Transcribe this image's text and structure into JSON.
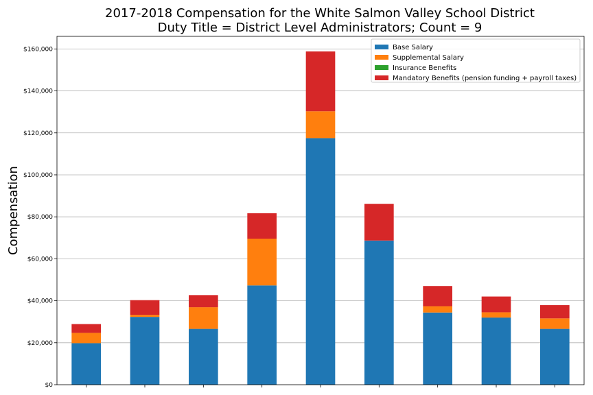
{
  "chart_data": {
    "type": "bar",
    "stacked": true,
    "title": "2017-2018 Compensation for the White Salmon Valley School District",
    "subtitle": "Duty Title = District Level Administrators; Count = 9",
    "xlabel": "",
    "ylabel": "Compensation",
    "ylim": [
      0,
      166000
    ],
    "yticks": [
      0,
      20000,
      40000,
      60000,
      80000,
      100000,
      120000,
      140000,
      160000
    ],
    "ytick_labels": [
      "$0",
      "$20,000",
      "$40,000",
      "$60,000",
      "$80,000",
      "$100,000",
      "$120,000",
      "$140,000",
      "$160,000"
    ],
    "grid": "horizontal",
    "legend_position": "top-right",
    "categories": [
      "",
      "",
      "",
      "",
      "",
      "",
      "",
      "",
      ""
    ],
    "series": [
      {
        "name": "Base Salary",
        "color": "#1f77b4",
        "values": [
          19800,
          32300,
          26600,
          47300,
          117500,
          68700,
          34400,
          32000,
          26600
        ]
      },
      {
        "name": "Supplemental Salary",
        "color": "#ff7f0e",
        "values": [
          4900,
          1000,
          10300,
          22300,
          12800,
          0,
          3000,
          2500,
          5000
        ]
      },
      {
        "name": "Insurance Benefits",
        "color": "#2ca02c",
        "values": [
          0,
          0,
          0,
          0,
          0,
          0,
          0,
          0,
          0
        ]
      },
      {
        "name": "Mandatory Benefits (pension funding + payroll taxes)",
        "color": "#d62728",
        "values": [
          4200,
          7000,
          5800,
          12100,
          28500,
          17500,
          9600,
          7500,
          6300
        ]
      }
    ]
  }
}
